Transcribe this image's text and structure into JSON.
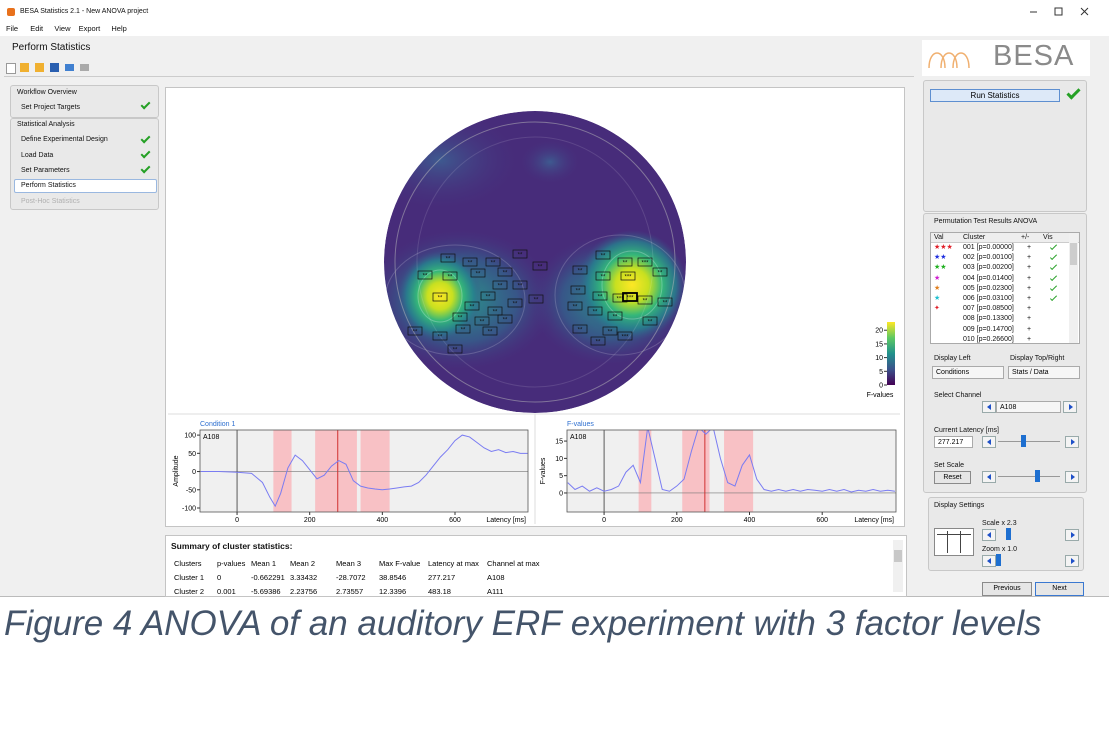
{
  "window": {
    "title": "BESA Statistics 2.1 - New ANOVA project"
  },
  "menu": [
    "File",
    "Edit",
    "View",
    "Export",
    "Help"
  ],
  "header": {
    "title": "Perform Statistics",
    "logo": "BESA"
  },
  "workflow": {
    "overview": {
      "title": "Workflow Overview",
      "items": [
        "Set Project Targets"
      ]
    },
    "analysis": {
      "title": "Statistical Analysis",
      "items": [
        "Define Experimental Design",
        "Load Data",
        "Set Parameters",
        "Perform Statistics",
        "Post-Hoc Statistics"
      ]
    }
  },
  "topomap": {
    "sensor_labels": [
      "**",
      "***"
    ],
    "colorbar": {
      "lim": [
        0,
        23
      ],
      "ticks": [
        20,
        15,
        10,
        5,
        0
      ],
      "label": "F-values"
    }
  },
  "plots": [
    {
      "type": "line",
      "title": "Condition 1",
      "channel": "A108",
      "ylabel": "Amplitude",
      "xlabel": "Latency [ms]",
      "xlim": [
        -102,
        801
      ],
      "ylim": [
        -111,
        114
      ],
      "xticks": [
        0,
        200,
        400,
        600
      ],
      "yticks": [
        100,
        50,
        0,
        -50,
        -100
      ],
      "color": "#7a7cf2",
      "clusters": [
        [
          100,
          150
        ],
        [
          215,
          330
        ],
        [
          340,
          420
        ]
      ],
      "x": [
        -100,
        -50,
        0,
        40,
        70,
        90,
        105,
        120,
        140,
        160,
        180,
        200,
        220,
        240,
        260,
        280,
        300,
        320,
        340,
        360,
        380,
        400,
        420,
        440,
        460,
        480,
        500,
        520,
        540,
        560,
        580,
        600,
        620,
        640,
        660,
        680,
        700,
        720,
        740,
        760,
        780,
        800
      ],
      "values": [
        0,
        0,
        -2,
        -5,
        -30,
        -70,
        -95,
        -60,
        10,
        45,
        30,
        5,
        -20,
        -10,
        15,
        30,
        20,
        -25,
        -40,
        -45,
        -48,
        -50,
        -48,
        -45,
        -42,
        -40,
        -30,
        -10,
        15,
        40,
        60,
        85,
        100,
        95,
        80,
        65,
        55,
        60,
        52,
        55,
        50,
        50
      ]
    },
    {
      "type": "line",
      "title": "F-values",
      "channel": "A108",
      "ylabel": "F-values",
      "xlabel": "Latency [ms]",
      "xlim": [
        -102,
        803
      ],
      "ylim": [
        -5.5,
        18.2
      ],
      "xticks": [
        0,
        200,
        400,
        600
      ],
      "yticks": [
        15,
        10,
        5,
        0
      ],
      "color": "#7a7cf2",
      "clusters": [
        [
          95,
          130
        ],
        [
          215,
          290
        ],
        [
          330,
          410
        ]
      ],
      "x": [
        -100,
        -80,
        -60,
        -40,
        -20,
        0,
        20,
        40,
        60,
        80,
        100,
        120,
        140,
        160,
        180,
        200,
        220,
        240,
        260,
        280,
        300,
        320,
        340,
        360,
        380,
        400,
        420,
        440,
        460,
        480,
        500,
        520,
        540,
        560,
        580,
        600,
        620,
        640,
        660,
        680,
        700,
        720,
        740,
        760,
        780,
        800
      ],
      "values": [
        3,
        1,
        2,
        0.5,
        1.5,
        0.5,
        1,
        2,
        6,
        8,
        3,
        19,
        10,
        1,
        0.5,
        2,
        4,
        12,
        19,
        17,
        19,
        10,
        3,
        2,
        8,
        11,
        4,
        1,
        0.5,
        1,
        0.5,
        1,
        0.5,
        1,
        0.8,
        0.5,
        1,
        0.5,
        1,
        0.3,
        0.8,
        0.5,
        1,
        0.5,
        0.8,
        0.5
      ]
    }
  ],
  "summary": {
    "title": "Summary of cluster statistics:",
    "columns": [
      "Clusters",
      "p-values",
      "Mean 1",
      "Mean 2",
      "Mean 3",
      "Max F-value",
      "Latency at max",
      "Channel at max"
    ],
    "rows": [
      [
        "Cluster 1",
        0,
        -0.662291,
        3.33432,
        -28.7072,
        38.8546,
        277.217,
        "A108"
      ],
      [
        "Cluster 2",
        0.001,
        -5.69386,
        2.23756,
        2.73557,
        12.3396,
        483.18,
        "A111"
      ]
    ]
  },
  "right_panel": {
    "run": "Run Statistics",
    "results_title": "Permutation Test Results ANOVA",
    "results_columns": [
      "Val",
      "Cluster",
      "+/-",
      "Vis"
    ],
    "results": [
      {
        "val": "★★★",
        "color": "#e0202a",
        "name": "001 [p=0.00000]",
        "sign": "+",
        "vis": true
      },
      {
        "val": "★★",
        "color": "#2030e0",
        "name": "002 [p=0.00100]",
        "sign": "+",
        "vis": true
      },
      {
        "val": "★★",
        "color": "#20b020",
        "name": "003 [p=0.00200]",
        "sign": "+",
        "vis": true
      },
      {
        "val": "★",
        "color": "#d020d0",
        "name": "004 [p=0.01400]",
        "sign": "+",
        "vis": true
      },
      {
        "val": "★",
        "color": "#e08020",
        "name": "005 [p=0.02300]",
        "sign": "+",
        "vis": true
      },
      {
        "val": "★",
        "color": "#20c0d0",
        "name": "006 [p=0.03100]",
        "sign": "+",
        "vis": true
      },
      {
        "val": "✦",
        "color": "#e0202a",
        "name": "007 [p=0.08500]",
        "sign": "+",
        "vis": false
      },
      {
        "val": null,
        "color": "#000000",
        "name": "008 [p=0.13300]",
        "sign": "+",
        "vis": false
      },
      {
        "val": null,
        "color": "#000000",
        "name": "009 [p=0.14700]",
        "sign": "+",
        "vis": false
      },
      {
        "val": null,
        "color": "#000000",
        "name": "010 [p=0.26600]",
        "sign": "+",
        "vis": false
      }
    ],
    "display_left": {
      "label": "Display Left",
      "value": "Conditions"
    },
    "display_right": {
      "label": "Display Top/Right",
      "value": "Stats / Data"
    },
    "channel": {
      "label": "Select Channel",
      "value": "A108"
    },
    "latency": {
      "label": "Current Latency [ms]",
      "value": 277.217
    },
    "scale": {
      "label": "Set Scale",
      "button": "Reset"
    },
    "display_settings": {
      "title": "Display Settings",
      "scale": "Scale x 2.3",
      "zoom": "Zoom x 1.0"
    },
    "previous": "Previous",
    "next": "Next"
  },
  "caption": "Figure 4 ANOVA of an auditory ERF experiment with 3 factor levels"
}
